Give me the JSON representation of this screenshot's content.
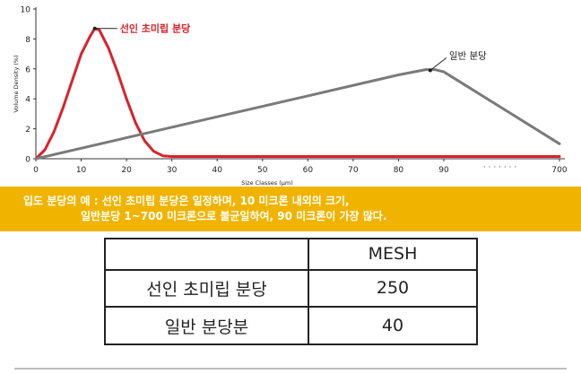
{
  "chart_data": {
    "type": "line",
    "xlabel": "Size Classes (μm)",
    "ylabel": "Volume Density (%)",
    "ylim": [
      0,
      10
    ],
    "yticks": [
      "0",
      "2",
      "4",
      "6",
      "8",
      "10"
    ],
    "xticks": [
      "0",
      "10",
      "20",
      "30",
      "40",
      "50",
      "60",
      "70",
      "80",
      "90",
      "700"
    ],
    "axis_break": "· · · · · · ·",
    "grid": false,
    "series": [
      {
        "name": "선인 초미립 분당",
        "color": "#d9222a",
        "points": [
          [
            0,
            0
          ],
          [
            2,
            0.6
          ],
          [
            4,
            1.8
          ],
          [
            6,
            3.4
          ],
          [
            8,
            5.2
          ],
          [
            10,
            7.0
          ],
          [
            12,
            8.2
          ],
          [
            13,
            8.7
          ],
          [
            14,
            8.6
          ],
          [
            16,
            7.4
          ],
          [
            18,
            5.8
          ],
          [
            20,
            4.0
          ],
          [
            22,
            2.4
          ],
          [
            24,
            1.2
          ],
          [
            26,
            0.5
          ],
          [
            28,
            0.2
          ],
          [
            30,
            0.15
          ],
          [
            50,
            0.15
          ],
          [
            70,
            0.15
          ],
          [
            90,
            0.15
          ],
          [
            700,
            0.15
          ]
        ]
      },
      {
        "name": "일반 분당",
        "color": "#7a7a7a",
        "points": [
          [
            0,
            0
          ],
          [
            20,
            1.4
          ],
          [
            40,
            2.8
          ],
          [
            60,
            4.2
          ],
          [
            80,
            5.6
          ],
          [
            86,
            5.95
          ],
          [
            88,
            5.95
          ],
          [
            90,
            5.8
          ],
          [
            700,
            1.0
          ]
        ]
      }
    ]
  },
  "banner": {
    "line1": "입도 분당의 예 : 선인 초미립 분당은 일정하며, 10 미크론 내외의 크기,",
    "line2": "일반분당 1~700 미크론으로 불균일하여, 90 미크론이 가장 많다."
  },
  "table": {
    "header": [
      "",
      "MESH"
    ],
    "rows": [
      [
        "선인 초미립 분당",
        "250"
      ],
      [
        "일반 분당분",
        "40"
      ]
    ]
  }
}
